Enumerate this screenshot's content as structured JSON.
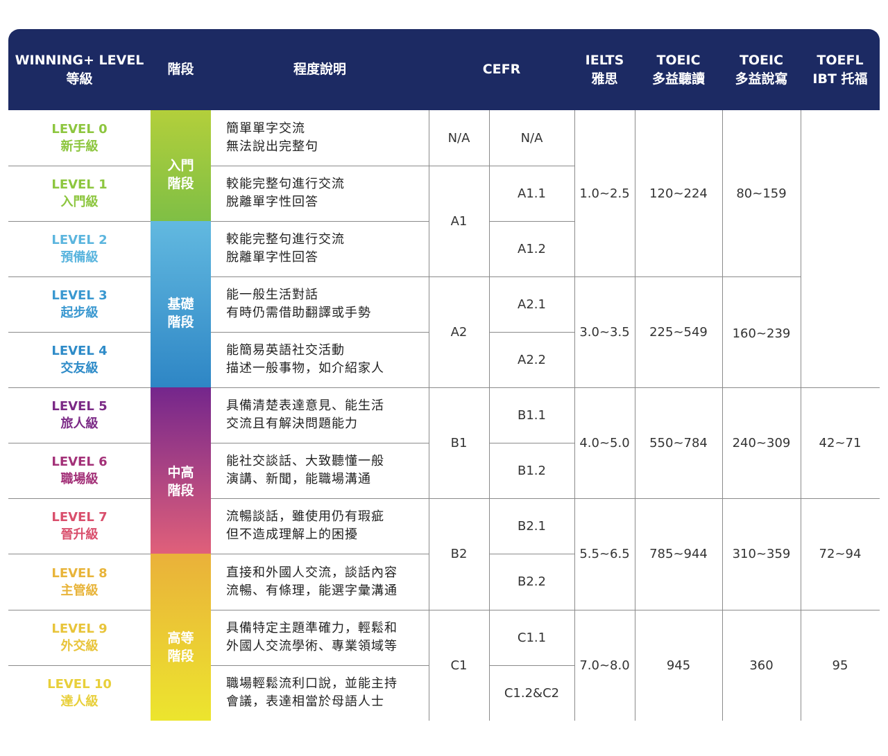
{
  "headers": {
    "level": [
      "WINNING+ LEVEL",
      "等級"
    ],
    "stage": [
      "階段"
    ],
    "desc": [
      "程度說明"
    ],
    "cefr": [
      "CEFR"
    ],
    "ielts": [
      "IELTS",
      "雅思"
    ],
    "toeic_lr": [
      "TOEIC",
      "多益聽讀"
    ],
    "toeic_sw": [
      "TOEIC",
      "多益說寫"
    ],
    "toefl": [
      "TOEFL",
      "IBT 托福"
    ]
  },
  "levels": [
    {
      "level": "LEVEL 0",
      "name": "新手級",
      "color": "#8dc63f",
      "desc": [
        "簡單單字交流",
        "無法說出完整句"
      ],
      "cefr_sub": "N/A"
    },
    {
      "level": "LEVEL 1",
      "name": "入門級",
      "color": "#8dc63f",
      "desc": [
        "較能完整句進行交流",
        "脫離單字性回答"
      ],
      "cefr_sub": "A1.1"
    },
    {
      "level": "LEVEL 2",
      "name": "預備級",
      "color": "#5bb5de",
      "desc": [
        "較能完整句進行交流",
        "脫離單字性回答"
      ],
      "cefr_sub": "A1.2"
    },
    {
      "level": "LEVEL 3",
      "name": "起步級",
      "color": "#3a98d0",
      "desc": [
        "能一般生活對話",
        "有時仍需借助翻譯或手勢"
      ],
      "cefr_sub": "A2.1"
    },
    {
      "level": "LEVEL 4",
      "name": "交友級",
      "color": "#2e8bc8",
      "desc": [
        "能簡易英語社交活動",
        "描述一般事物，如介紹家人"
      ],
      "cefr_sub": "A2.2"
    },
    {
      "level": "LEVEL 5",
      "name": "旅人級",
      "color": "#7b2a86",
      "desc": [
        "具備清楚表達意見、能生活",
        "交流且有解決問題能力"
      ],
      "cefr_sub": "B1.1"
    },
    {
      "level": "LEVEL 6",
      "name": "職場級",
      "color": "#a33178",
      "desc": [
        "能社交談話、大致聽懂一般",
        "演講、新聞，能職場溝通"
      ],
      "cefr_sub": "B1.2"
    },
    {
      "level": "LEVEL 7",
      "name": "晉升級",
      "color": "#d94f6c",
      "desc": [
        "流暢談話，雖使用仍有瑕疵",
        "但不造成理解上的困擾"
      ],
      "cefr_sub": "B2.1"
    },
    {
      "level": "LEVEL 8",
      "name": "主管級",
      "color": "#e8b43a",
      "desc": [
        "直接和外國人交流，談話內容",
        "流暢、有條理，能選字彙溝通"
      ],
      "cefr_sub": "B2.2"
    },
    {
      "level": "LEVEL 9",
      "name": "外交級",
      "color": "#e8c43a",
      "desc": [
        "具備特定主題準確力，輕鬆和",
        "外國人交流學術、專業領域等"
      ],
      "cefr_sub": "C1.1"
    },
    {
      "level": "LEVEL 10",
      "name": "達人級",
      "color": "#e8cf3a",
      "desc": [
        "職場輕鬆流利口說，並能主持",
        "會議，表達相當於母語人士"
      ],
      "cefr_sub": "C1.2&C2"
    }
  ],
  "stages": [
    {
      "label": [
        "入門",
        "階段"
      ],
      "gradient": [
        "#b3cf3b",
        "#7fbf45"
      ]
    },
    {
      "label": [
        "基礎",
        "階段"
      ],
      "gradient": [
        "#62b9e0",
        "#2e86c5"
      ]
    },
    {
      "label": [
        "中高",
        "階段"
      ],
      "gradient": [
        "#74268c",
        "#e0607a"
      ]
    },
    {
      "label": [
        "高等",
        "階段"
      ],
      "gradient": [
        "#eab13a",
        "#ece52e"
      ]
    }
  ],
  "cefr_main": [
    "N/A",
    "A1",
    "A2",
    "B1",
    "B2",
    "C1"
  ],
  "ielts": [
    "1.0~2.5",
    "3.0~3.5",
    "4.0~5.0",
    "5.5~6.5",
    "7.0~8.0"
  ],
  "toeic_lr": [
    "120~224",
    "225~549",
    "550~784",
    "785~944",
    "945"
  ],
  "toeic_sw": [
    "80~159",
    "160~239",
    "240~309",
    "310~359",
    "360"
  ],
  "toefl": [
    "42~71",
    "72~94",
    "95"
  ]
}
